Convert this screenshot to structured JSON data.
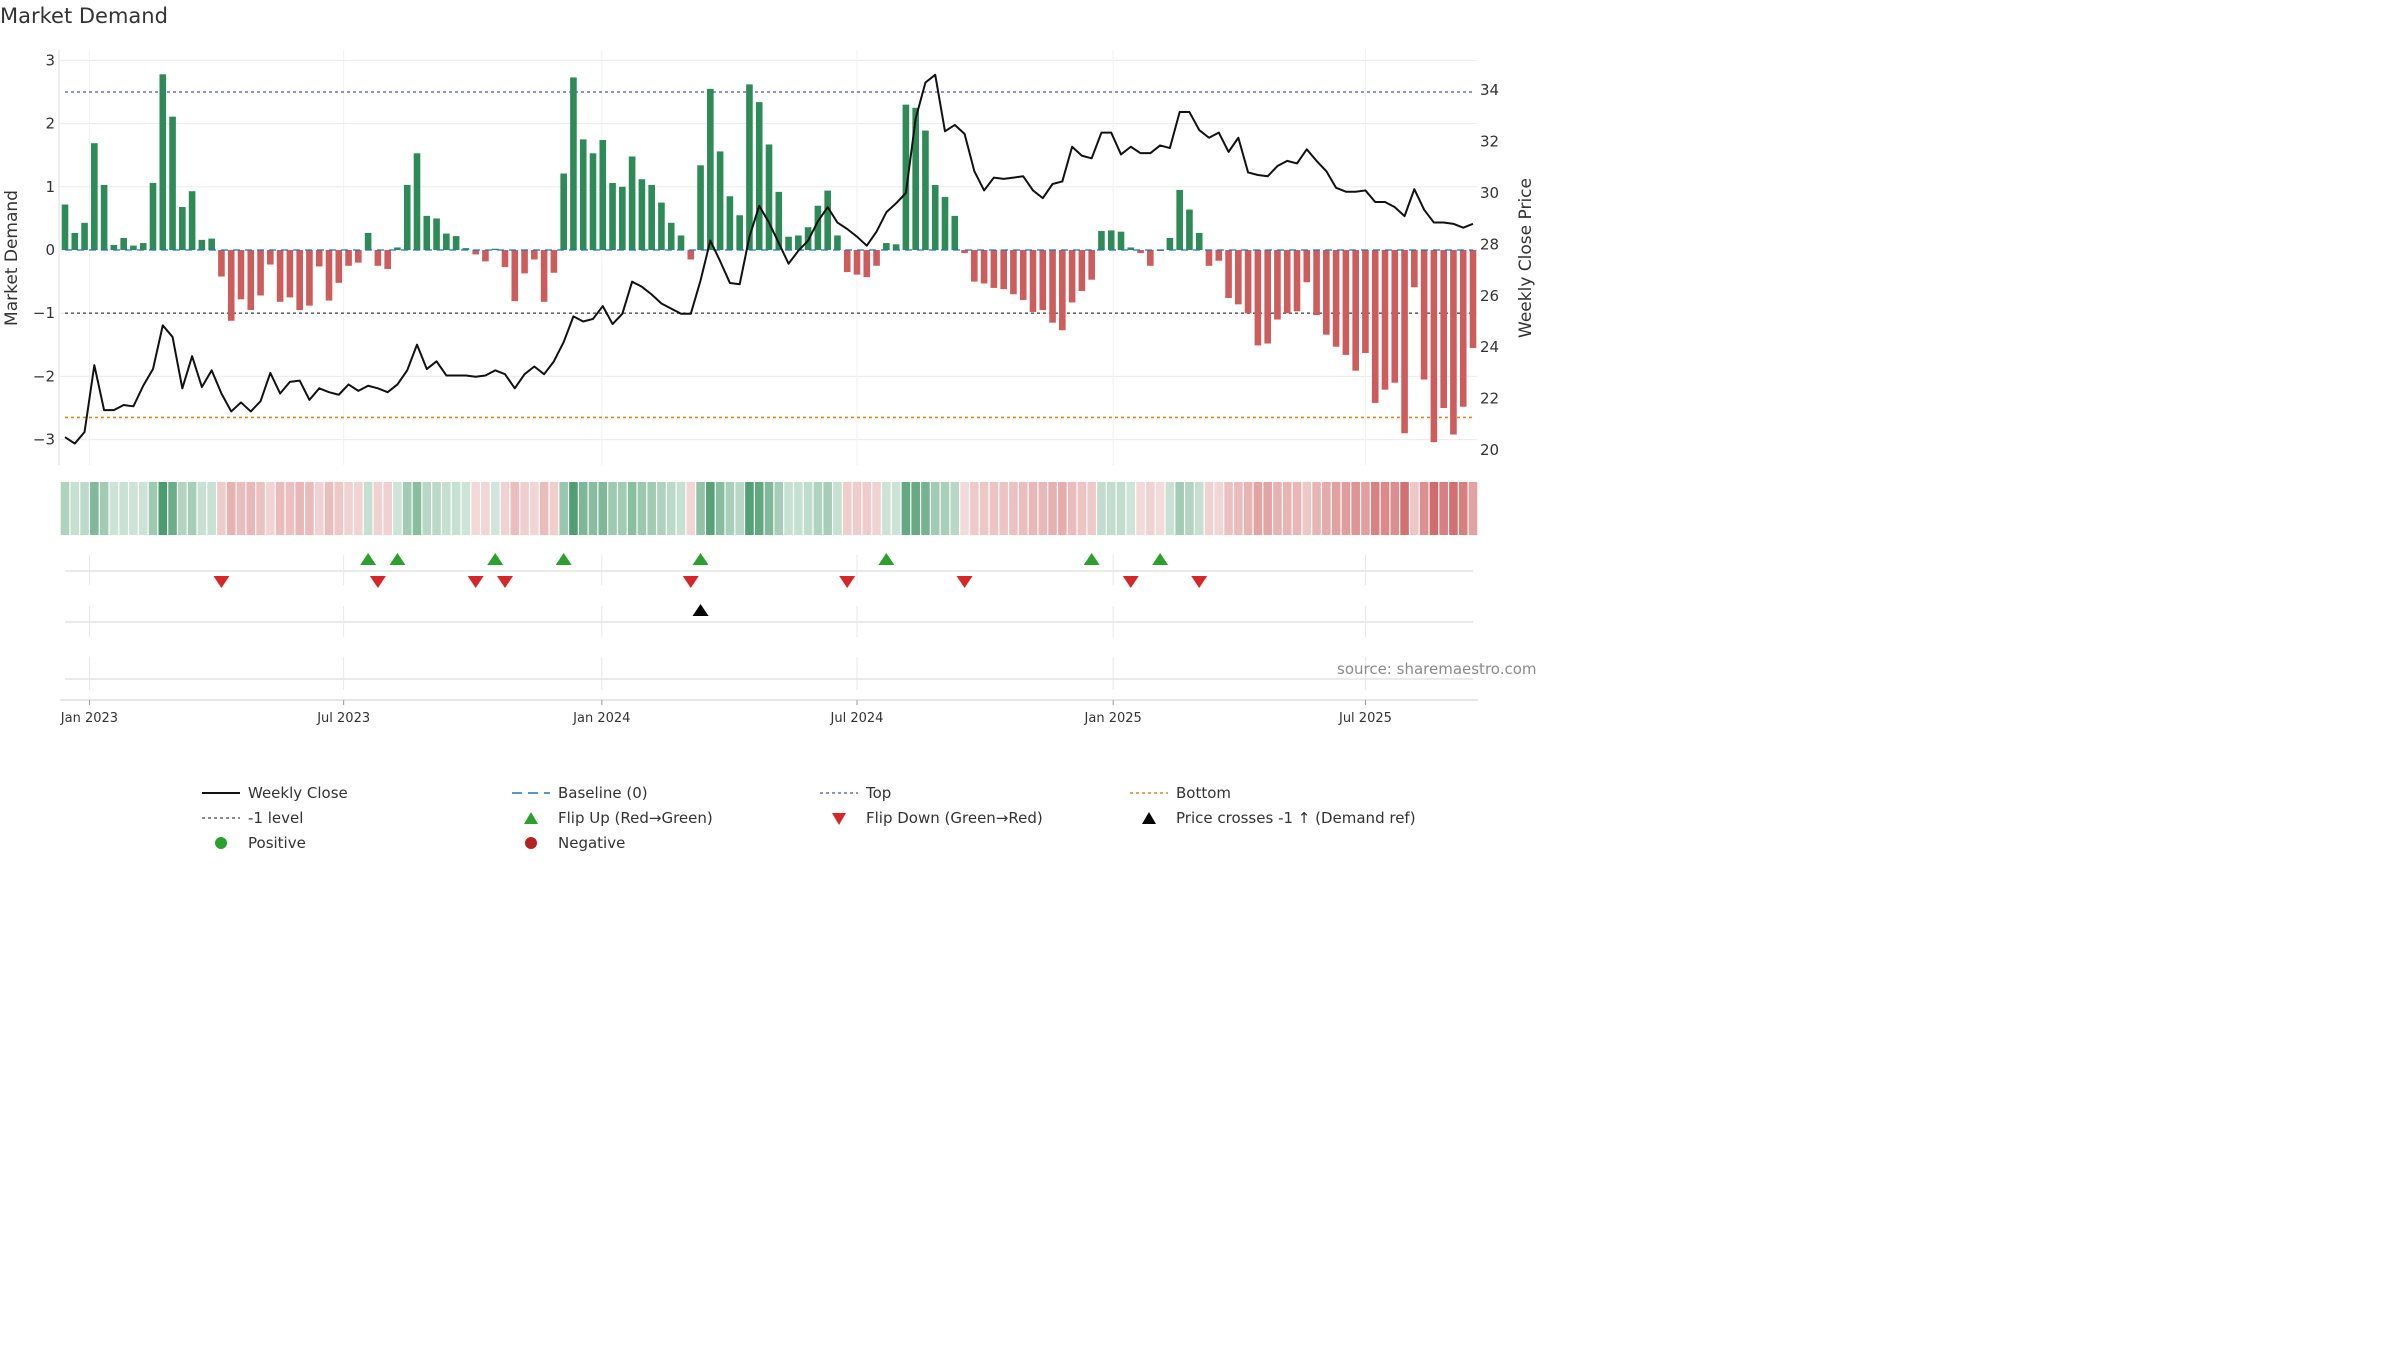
{
  "chart_data": {
    "type": "bar",
    "title": "Market Demand",
    "ylabel": "Market Demand",
    "y2label": "Weekly Close Price",
    "ylim": [
      -3.3,
      3.1
    ],
    "y2lim": [
      19.6,
      35.2
    ],
    "yticks": [
      3,
      2,
      1,
      0,
      -1,
      -2,
      -3
    ],
    "ytick_labels": [
      "3",
      "2",
      "1",
      "0",
      "−1",
      "−2",
      "−3"
    ],
    "y2ticks": [
      34,
      32,
      30,
      28,
      26,
      24,
      22,
      20
    ],
    "date_ticks": [
      {
        "label": "Jan 2023",
        "week": 2.5
      },
      {
        "label": "Jul 2023",
        "week": 28.5
      },
      {
        "label": "Jan 2024",
        "week": 54.9
      },
      {
        "label": "Jul 2024",
        "week": 81
      },
      {
        "label": "Jan 2025",
        "week": 107.2
      },
      {
        "label": "Jul 2025",
        "week": 133
      }
    ],
    "reference_lines": {
      "top": 2.5,
      "minus_one": -1,
      "bottom": -2.65,
      "baseline": 0
    },
    "series": [
      {
        "name": "Market Demand",
        "values": [
          0.72,
          0.27,
          0.43,
          1.69,
          1.03,
          0.08,
          0.19,
          0.07,
          0.11,
          1.06,
          2.78,
          2.11,
          0.68,
          0.93,
          0.16,
          0.18,
          -0.42,
          -1.12,
          -0.78,
          -0.95,
          -0.72,
          -0.23,
          -0.82,
          -0.75,
          -0.95,
          -0.88,
          -0.26,
          -0.8,
          -0.52,
          -0.25,
          -0.2,
          0.27,
          -0.25,
          -0.3,
          0.04,
          1.03,
          1.53,
          0.54,
          0.5,
          0.26,
          0.22,
          0.03,
          -0.07,
          -0.18,
          0.02,
          -0.27,
          -0.81,
          -0.37,
          -0.15,
          -0.82,
          -0.36,
          1.21,
          2.73,
          1.75,
          1.53,
          1.74,
          1.06,
          1.0,
          1.48,
          1.12,
          1.03,
          0.75,
          0.43,
          0.23,
          -0.15,
          1.34,
          2.55,
          1.56,
          0.85,
          0.55,
          2.62,
          2.34,
          1.67,
          0.92,
          0.21,
          0.23,
          0.36,
          0.7,
          0.94,
          0.23,
          -0.35,
          -0.39,
          -0.43,
          -0.25,
          0.11,
          0.09,
          2.3,
          2.25,
          1.89,
          1.03,
          0.84,
          0.54,
          -0.05,
          -0.5,
          -0.53,
          -0.6,
          -0.62,
          -0.7,
          -0.79,
          -0.98,
          -0.95,
          -1.15,
          -1.27,
          -0.83,
          -0.65,
          -0.47,
          0.3,
          0.31,
          0.29,
          0.04,
          -0.05,
          -0.25,
          -0.01,
          0.19,
          0.95,
          0.64,
          0.27,
          -0.25,
          -0.17,
          -0.76,
          -0.86,
          -1.0,
          -1.51,
          -1.48,
          -1.1,
          -1.0,
          -0.97,
          -0.51,
          -1.03,
          -1.34,
          -1.53,
          -1.66,
          -1.91,
          -1.63,
          -2.42,
          -2.21,
          -2.1,
          -2.9,
          -0.59,
          -2.05,
          -3.04,
          -2.5,
          -2.92,
          -2.48,
          -1.55
        ]
      },
      {
        "name": "Weekly Close",
        "values": [
          20.5,
          20.25,
          20.7,
          23.3,
          21.55,
          21.55,
          21.75,
          21.7,
          22.5,
          23.15,
          24.85,
          24.4,
          22.4,
          23.65,
          22.45,
          23.1,
          22.2,
          21.5,
          21.85,
          21.5,
          21.9,
          23.0,
          22.2,
          22.65,
          22.7,
          21.95,
          22.4,
          22.25,
          22.15,
          22.55,
          22.3,
          22.5,
          22.4,
          22.25,
          22.55,
          23.1,
          24.1,
          23.15,
          23.45,
          22.9,
          22.9,
          22.9,
          22.85,
          22.9,
          23.1,
          22.95,
          22.4,
          22.95,
          23.25,
          22.95,
          23.45,
          24.2,
          25.2,
          25.0,
          25.1,
          25.6,
          24.9,
          25.3,
          26.55,
          26.35,
          26.05,
          25.7,
          25.5,
          25.3,
          25.3,
          26.6,
          28.15,
          27.35,
          26.5,
          26.45,
          28.3,
          29.5,
          28.85,
          28.05,
          27.25,
          27.75,
          28.15,
          28.9,
          29.45,
          28.85,
          28.6,
          28.3,
          27.95,
          28.5,
          29.25,
          29.6,
          30.0,
          32.9,
          34.3,
          34.6,
          32.4,
          32.65,
          32.3,
          30.85,
          30.1,
          30.6,
          30.55,
          30.6,
          30.65,
          30.1,
          29.8,
          30.35,
          30.45,
          31.8,
          31.45,
          31.35,
          32.35,
          32.35,
          31.5,
          31.8,
          31.55,
          31.55,
          31.85,
          31.75,
          33.15,
          33.15,
          32.45,
          32.15,
          32.35,
          31.6,
          32.15,
          30.8,
          30.7,
          30.65,
          31.05,
          31.25,
          31.15,
          31.7,
          31.25,
          30.85,
          30.2,
          30.05,
          30.05,
          30.1,
          29.65,
          29.65,
          29.45,
          29.1,
          30.15,
          29.35,
          28.85,
          28.85,
          28.8,
          28.65,
          28.8
        ]
      },
      {
        "name": "Flip Up (Red→Green)",
        "weeks": [
          31,
          34,
          44,
          51,
          65,
          84,
          105,
          112
        ]
      },
      {
        "name": "Flip Down (Green→Red)",
        "weeks": [
          16,
          32,
          42,
          45,
          64,
          80,
          92,
          109,
          116
        ]
      },
      {
        "name": "Price crosses -1 ↑ (Demand ref)",
        "weeks": [
          65
        ]
      }
    ]
  },
  "legend": [
    {
      "label": "Weekly Close",
      "icon": "solid-line",
      "color": "#111111"
    },
    {
      "label": "Baseline (0)",
      "icon": "dashed-line",
      "color": "#1f77b4"
    },
    {
      "label": "Top",
      "icon": "dotted-line",
      "color": "#6b6bd6"
    },
    {
      "label": "Bottom",
      "icon": "dotted-line",
      "color": "#d88a1c"
    },
    {
      "label": "-1 level",
      "icon": "dotted-line",
      "color": "#666666"
    },
    {
      "label": "Flip Up (Red→Green)",
      "icon": "triangle-up",
      "color": "#2ca02c"
    },
    {
      "label": "Flip Down (Green→Red)",
      "icon": "triangle-down",
      "color": "#d62728"
    },
    {
      "label": "Price crosses -1 ↑ (Demand ref)",
      "icon": "triangle-up",
      "color": "#000000"
    },
    {
      "label": "Positive",
      "icon": "circle",
      "color": "#2ca02c"
    },
    {
      "label": "Negative",
      "icon": "circle",
      "color": "#b22222"
    }
  ],
  "colors": {
    "positive_bar": "#2e8b57",
    "negative_bar": "#cd5c5c",
    "price_line": "#111111",
    "top": "#6b6bd6",
    "bottom": "#d88a1c",
    "minus_one": "#666666",
    "baseline": "#1f77b4",
    "flip_up": "#2ca02c",
    "flip_down": "#d62728",
    "cross": "#000000"
  },
  "source": "source: sharemaestro.com"
}
